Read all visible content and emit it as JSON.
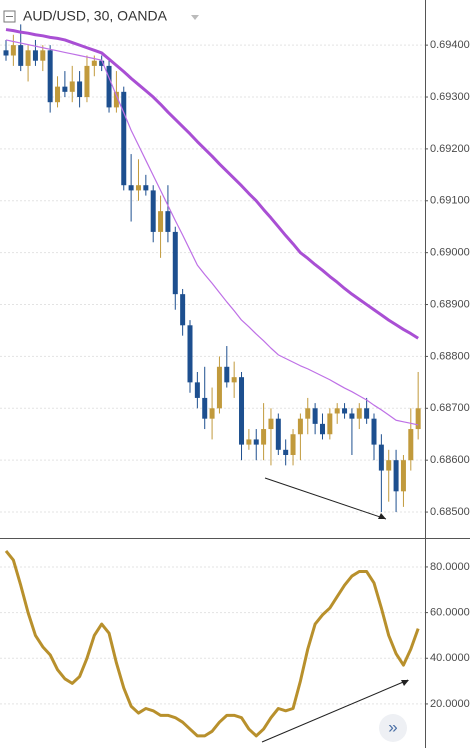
{
  "chart_data": [
    {
      "type": "candlestick",
      "title": "AUD/USD, 30, OANDA",
      "open": [
        0.6939,
        0.6938,
        0.694,
        0.6936,
        0.6939,
        0.6937,
        0.6939,
        0.6929,
        0.6932,
        0.6931,
        0.6933,
        0.693,
        0.6936,
        0.6937,
        0.6936,
        0.6928,
        0.6931,
        0.6913,
        0.6912,
        0.6913,
        0.6912,
        0.6904,
        0.6908,
        0.6904,
        0.6892,
        0.6886,
        0.6875,
        0.6872,
        0.6868,
        0.687,
        0.6878,
        0.6875,
        0.6876,
        0.6863,
        0.6864,
        0.6863,
        0.6866,
        0.6868,
        0.6862,
        0.6861,
        0.6865,
        0.6868,
        0.687,
        0.6867,
        0.6865,
        0.6869,
        0.687,
        0.6869,
        0.6868,
        0.687,
        0.6868,
        0.6863,
        0.6858,
        0.686,
        0.6854,
        0.686,
        0.6866
      ],
      "high": [
        0.6941,
        0.6942,
        0.6944,
        0.694,
        0.6941,
        0.694,
        0.694,
        0.6934,
        0.6935,
        0.6936,
        0.6935,
        0.6938,
        0.6938,
        0.6938,
        0.6937,
        0.6935,
        0.6932,
        0.6919,
        0.6918,
        0.6915,
        0.6913,
        0.6911,
        0.6913,
        0.6905,
        0.6893,
        0.6887,
        0.6877,
        0.6878,
        0.6874,
        0.688,
        0.6882,
        0.6879,
        0.6877,
        0.6866,
        0.6866,
        0.6871,
        0.687,
        0.6869,
        0.6864,
        0.6866,
        0.6869,
        0.6872,
        0.6871,
        0.6869,
        0.687,
        0.6871,
        0.6871,
        0.687,
        0.6871,
        0.6872,
        0.6869,
        0.6865,
        0.6862,
        0.6862,
        0.6861,
        0.687,
        0.6877
      ],
      "low": [
        0.6937,
        0.6936,
        0.6935,
        0.6933,
        0.6936,
        0.6935,
        0.6927,
        0.6928,
        0.693,
        0.6929,
        0.6928,
        0.6929,
        0.6934,
        0.6935,
        0.6927,
        0.6927,
        0.6912,
        0.6906,
        0.691,
        0.6911,
        0.6902,
        0.6899,
        0.6902,
        0.6889,
        0.6884,
        0.6873,
        0.687,
        0.6866,
        0.6864,
        0.6869,
        0.6874,
        0.6872,
        0.686,
        0.6862,
        0.686,
        0.686,
        0.6859,
        0.6861,
        0.6859,
        0.6859,
        0.686,
        0.6865,
        0.6865,
        0.6864,
        0.6864,
        0.6867,
        0.6868,
        0.6861,
        0.6866,
        0.6867,
        0.686,
        0.685,
        0.6852,
        0.685,
        0.6851,
        0.6858,
        0.6864
      ],
      "close": [
        0.6938,
        0.694,
        0.6936,
        0.6939,
        0.6937,
        0.6939,
        0.6929,
        0.6932,
        0.6931,
        0.6933,
        0.693,
        0.6936,
        0.6937,
        0.6936,
        0.6928,
        0.6931,
        0.6913,
        0.6912,
        0.6913,
        0.6912,
        0.6904,
        0.6908,
        0.6904,
        0.6892,
        0.6886,
        0.6875,
        0.6872,
        0.6868,
        0.687,
        0.6878,
        0.6875,
        0.6876,
        0.6863,
        0.6864,
        0.6863,
        0.6866,
        0.6868,
        0.6862,
        0.6861,
        0.6865,
        0.6868,
        0.687,
        0.6867,
        0.6865,
        0.6869,
        0.687,
        0.6869,
        0.6868,
        0.687,
        0.6868,
        0.6863,
        0.6858,
        0.686,
        0.6854,
        0.686,
        0.6866,
        0.687
      ],
      "up_color": "#c19a3c",
      "down_color": "#1d4f8f",
      "series": [
        {
          "color": "#a94fd4",
          "width": 3,
          "values": [
            0.6943,
            0.69428,
            0.69425,
            0.69423,
            0.6942,
            0.69418,
            0.69415,
            0.69413,
            0.6941,
            0.69405,
            0.694,
            0.69395,
            0.6939,
            0.69385,
            0.69373,
            0.69361,
            0.69349,
            0.69336,
            0.69324,
            0.69312,
            0.693,
            0.69286,
            0.69271,
            0.69257,
            0.69243,
            0.69229,
            0.69214,
            0.692,
            0.69186,
            0.69171,
            0.69157,
            0.69143,
            0.69129,
            0.69114,
            0.691,
            0.69083,
            0.69067,
            0.6905,
            0.69033,
            0.69017,
            0.69,
            0.68989,
            0.68977,
            0.68966,
            0.68954,
            0.68943,
            0.68931,
            0.6892,
            0.6891,
            0.689,
            0.6889,
            0.6888,
            0.6887,
            0.68861,
            0.68852,
            0.68844,
            0.68835
          ]
        },
        {
          "color": "#be70e6",
          "width": 1.2,
          "values": [
            0.6941,
            0.69407,
            0.69404,
            0.69401,
            0.69398,
            0.69395,
            0.69392,
            0.69389,
            0.69386,
            0.69383,
            0.6938,
            0.69377,
            0.69374,
            0.69371,
            0.69337,
            0.69303,
            0.6927,
            0.69236,
            0.69207,
            0.69178,
            0.69149,
            0.6912,
            0.69091,
            0.69062,
            0.69034,
            0.69005,
            0.68976,
            0.68958,
            0.68941,
            0.68923,
            0.68905,
            0.68888,
            0.6887,
            0.68857,
            0.68843,
            0.6883,
            0.68816,
            0.68803,
            0.68796,
            0.68789,
            0.68782,
            0.68776,
            0.68769,
            0.68762,
            0.68755,
            0.68747,
            0.68739,
            0.68732,
            0.68724,
            0.68716,
            0.68706,
            0.68697,
            0.68687,
            0.68677,
            0.68674,
            0.68671,
            0.68668
          ]
        }
      ],
      "ylim": [
        0.6845,
        0.69487
      ],
      "yticks": [
        {
          "value": 0.694,
          "label": "0.69400"
        },
        {
          "value": 0.693,
          "label": "0.69300"
        },
        {
          "value": 0.692,
          "label": "0.69200"
        },
        {
          "value": 0.691,
          "label": "0.69100"
        },
        {
          "value": 0.69,
          "label": "0.69000"
        },
        {
          "value": 0.689,
          "label": "0.68900"
        },
        {
          "value": 0.688,
          "label": "0.68800"
        },
        {
          "value": 0.687,
          "label": "0.68700"
        },
        {
          "value": 0.686,
          "label": "0.68600"
        },
        {
          "value": 0.685,
          "label": "0.68500"
        }
      ],
      "grid": true
    },
    {
      "type": "line",
      "series": [
        {
          "color": "#b8902c",
          "width": 3,
          "values": [
            87,
            83,
            72,
            60,
            50,
            45,
            41.5,
            35,
            31,
            29,
            32,
            40,
            50,
            55,
            51,
            38,
            27,
            19,
            16,
            18,
            17,
            15,
            15,
            14,
            12,
            9,
            6,
            6,
            8,
            12,
            15,
            15,
            14,
            9,
            6,
            9,
            14,
            18,
            17,
            18,
            30,
            44,
            55,
            59,
            62,
            67,
            72,
            76,
            78,
            78,
            73,
            62,
            50,
            42,
            37,
            44,
            53
          ]
        }
      ],
      "ylim": [
        0.7,
        91.8
      ],
      "yticks": [
        {
          "value": 80,
          "label": "80.0000"
        },
        {
          "value": 60,
          "label": "60.0000"
        },
        {
          "value": 40,
          "label": "40.0000"
        },
        {
          "value": 20,
          "label": "20.0000"
        }
      ],
      "grid": true
    }
  ],
  "ui": {
    "scroll_button": "»"
  }
}
